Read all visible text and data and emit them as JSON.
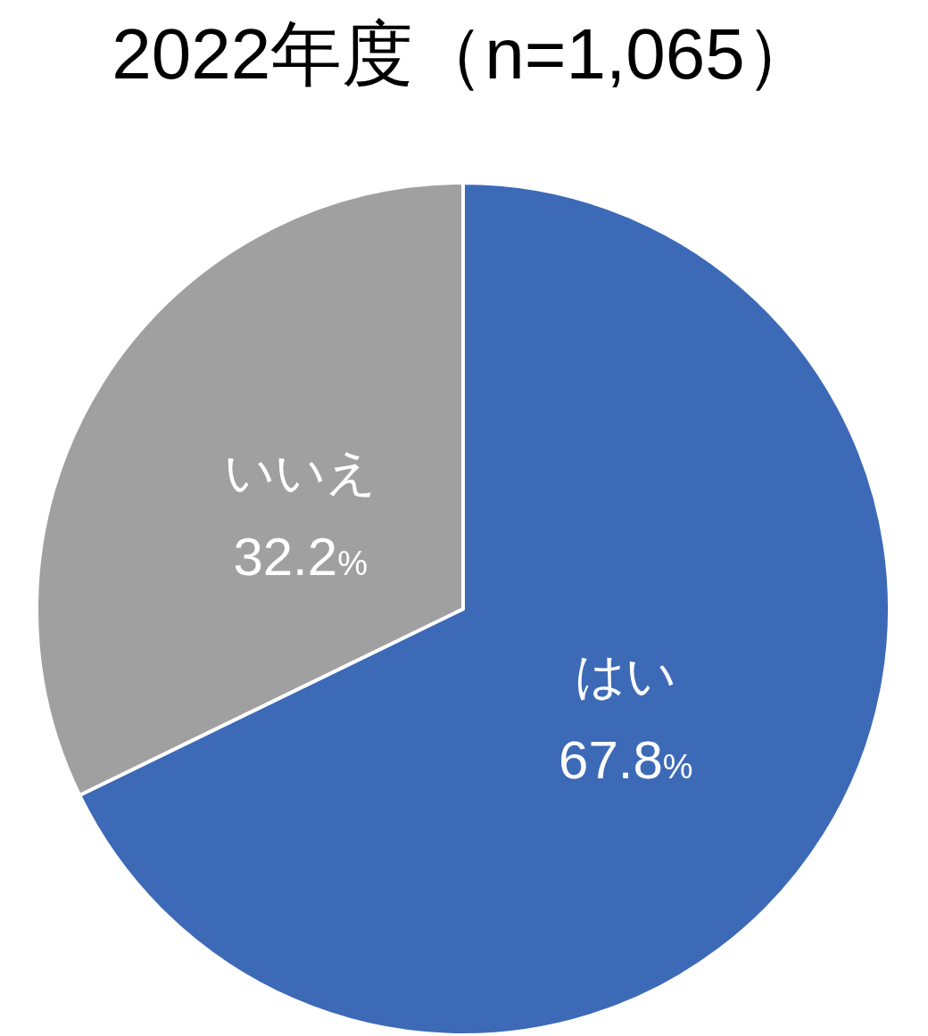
{
  "chart_data": {
    "type": "pie",
    "title": "2022年度（n=1,065）",
    "categories": [
      "はい",
      "いいえ"
    ],
    "values": [
      67.8,
      32.2
    ],
    "colors": [
      "#3d6ab7",
      "#a0a0a0"
    ],
    "value_labels": [
      "67.8%",
      "32.2%"
    ]
  }
}
